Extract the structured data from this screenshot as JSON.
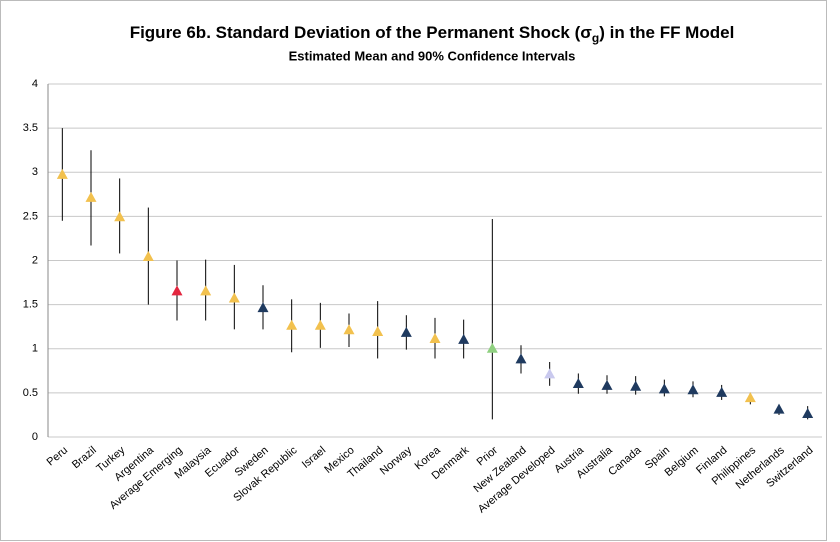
{
  "chart_data": {
    "type": "errorbar",
    "title": [
      "Figure 6b. Standard Deviation of the Permanent Shock (σ",
      "g",
      ") in the FF Model"
    ],
    "subtitle": "Estimated Mean and 90% Confidence Intervals",
    "categories": [
      "Peru",
      "Brazil",
      "Turkey",
      "Argentina",
      "Average Emerging",
      "Malaysia",
      "Ecuador",
      "Sweden",
      "Slovak Republic",
      "Israel",
      "Mexico",
      "Thailand",
      "Norway",
      "Korea",
      "Denmark",
      "Prior",
      "New Zealand",
      "Average Developed",
      "Austria",
      "Australia",
      "Canada",
      "Spain",
      "Belgium",
      "Finland",
      "Philippines",
      "Netherlands",
      "Switzerland"
    ],
    "values": [
      2.97,
      2.71,
      2.49,
      2.04,
      1.65,
      1.65,
      1.57,
      1.46,
      1.26,
      1.26,
      1.21,
      1.19,
      1.18,
      1.11,
      1.1,
      1.0,
      0.88,
      0.71,
      0.6,
      0.58,
      0.57,
      0.54,
      0.53,
      0.5,
      0.44,
      0.31,
      0.26
    ],
    "lower": [
      2.45,
      2.17,
      2.08,
      1.5,
      1.32,
      1.32,
      1.22,
      1.22,
      0.96,
      1.01,
      1.02,
      0.89,
      0.99,
      0.89,
      0.89,
      0.2,
      0.72,
      0.58,
      0.49,
      0.49,
      0.48,
      0.46,
      0.45,
      0.42,
      0.37,
      0.25,
      0.2
    ],
    "upper": [
      3.5,
      3.25,
      2.93,
      2.6,
      2.0,
      2.01,
      1.95,
      1.72,
      1.56,
      1.52,
      1.4,
      1.54,
      1.38,
      1.35,
      1.33,
      2.47,
      1.04,
      0.85,
      0.72,
      0.7,
      0.69,
      0.65,
      0.63,
      0.59,
      0.5,
      0.37,
      0.35
    ],
    "colors": [
      "#f2c14e",
      "#f2c14e",
      "#f2c14e",
      "#f2c14e",
      "#e3263f",
      "#f2c14e",
      "#f2c14e",
      "#1f3a5f",
      "#f2c14e",
      "#f2c14e",
      "#f2c14e",
      "#f2c14e",
      "#1f3a5f",
      "#f2c14e",
      "#1f3a5f",
      "#8fd080",
      "#1f3a5f",
      "#c9c9ee",
      "#1f3a5f",
      "#1f3a5f",
      "#1f3a5f",
      "#1f3a5f",
      "#1f3a5f",
      "#1f3a5f",
      "#f2c14e",
      "#1f3a5f",
      "#1f3a5f"
    ],
    "ylim": [
      0,
      4
    ],
    "yticks": [
      0,
      0.5,
      1,
      1.5,
      2,
      2.5,
      3,
      3.5,
      4
    ],
    "grid": true
  }
}
